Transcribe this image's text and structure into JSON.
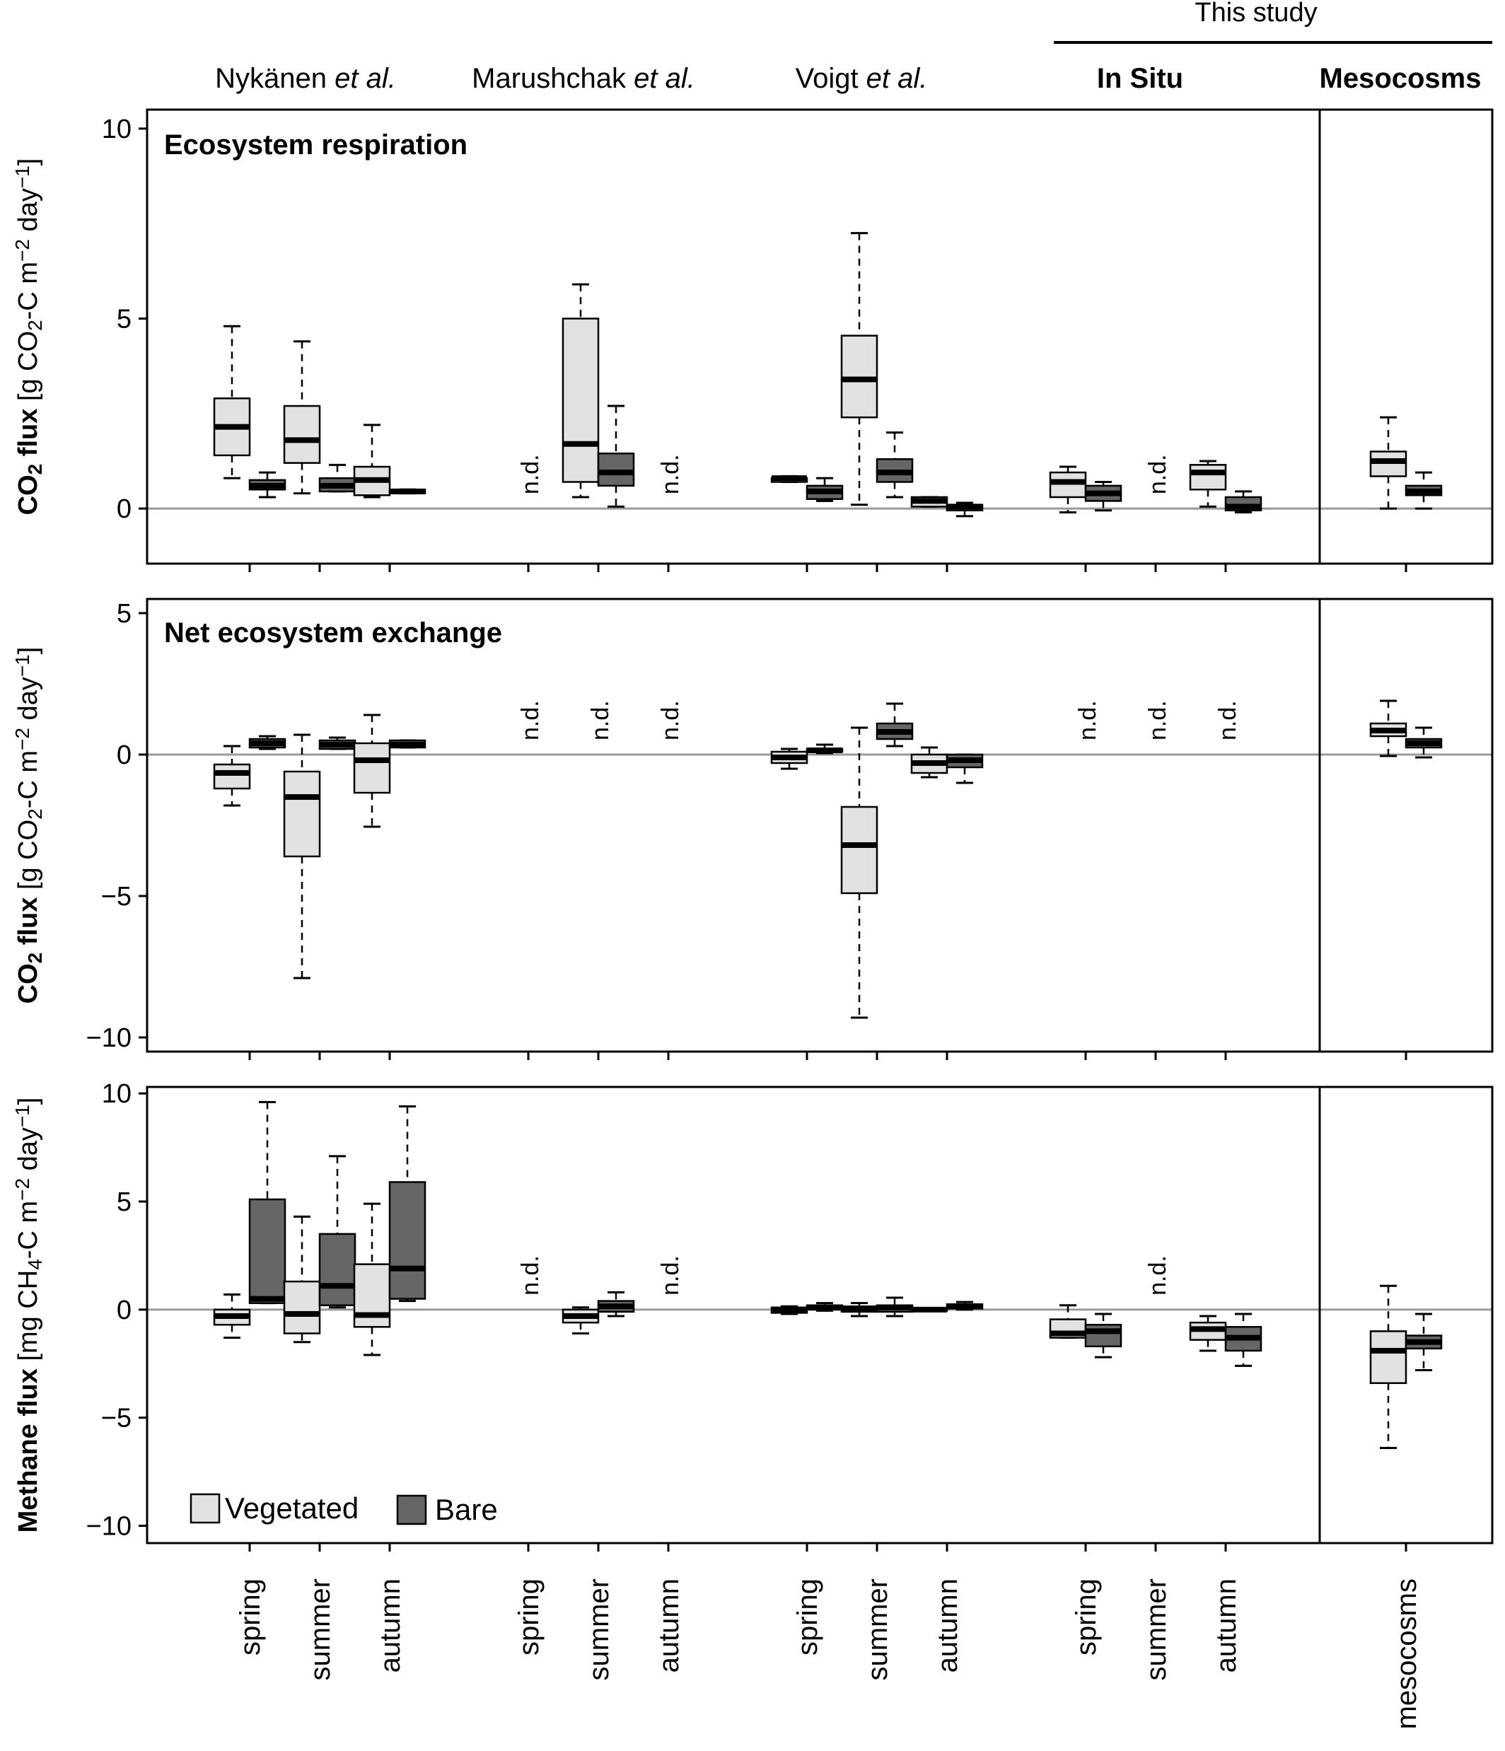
{
  "colors": {
    "vegetated": "#e2e2e2",
    "bare": "#666666",
    "axis": "#000000",
    "zero_line": "#9a9a9a"
  },
  "header": {
    "group_labels": [
      {
        "name": "Nykänen",
        "suffix": " et al."
      },
      {
        "name": "Marushchak",
        "suffix": " et al."
      },
      {
        "name": "Voigt",
        "suffix": " et al."
      },
      {
        "name": "In Situ",
        "suffix": ""
      },
      {
        "name": "Mesocosms",
        "suffix": ""
      }
    ],
    "this_study": "This study"
  },
  "x_tick_labels": [
    "spring",
    "summer",
    "autumn",
    "spring",
    "summer",
    "autumn",
    "spring",
    "summer",
    "autumn",
    "spring",
    "summer",
    "autumn",
    "mesocosms"
  ],
  "legend": {
    "vegetated": "Vegetated",
    "bare": "Bare"
  },
  "nd_label": "n.d.",
  "chart_data": [
    {
      "type": "box",
      "panel_title": "Ecosystem respiration",
      "ylabel": "CO₂ flux [g CO₂-C m⁻² day⁻¹]",
      "ylim": [
        -1.45,
        10.5
      ],
      "yticks": [
        0,
        5,
        10
      ],
      "boxes": [
        {
          "slot": 0,
          "series": "Vegetated",
          "lo": 0.8,
          "q1": 1.4,
          "median": 2.15,
          "q3": 2.9,
          "hi": 4.8
        },
        {
          "slot": 0,
          "series": "Bare",
          "lo": 0.3,
          "q1": 0.5,
          "median": 0.6,
          "q3": 0.75,
          "hi": 0.95
        },
        {
          "slot": 1,
          "series": "Vegetated",
          "lo": 0.4,
          "q1": 1.2,
          "median": 1.8,
          "q3": 2.7,
          "hi": 4.4
        },
        {
          "slot": 1,
          "series": "Bare",
          "lo": 0.45,
          "q1": 0.45,
          "median": 0.6,
          "q3": 0.8,
          "hi": 1.15
        },
        {
          "slot": 2,
          "series": "Vegetated",
          "lo": 0.3,
          "q1": 0.35,
          "median": 0.75,
          "q3": 1.1,
          "hi": 2.2
        },
        {
          "slot": 2,
          "series": "Bare",
          "lo": 0.4,
          "q1": 0.4,
          "median": 0.45,
          "q3": 0.5,
          "hi": 0.5
        },
        {
          "slot": 4,
          "series": "Vegetated",
          "lo": 0.3,
          "q1": 0.7,
          "median": 1.7,
          "q3": 5.0,
          "hi": 5.9
        },
        {
          "slot": 4,
          "series": "Bare",
          "lo": 0.05,
          "q1": 0.6,
          "median": 0.95,
          "q3": 1.45,
          "hi": 2.7
        },
        {
          "slot": 6,
          "series": "Vegetated",
          "lo": 0.7,
          "q1": 0.7,
          "median": 0.8,
          "q3": 0.8,
          "hi": 0.85
        },
        {
          "slot": 6,
          "series": "Bare",
          "lo": 0.2,
          "q1": 0.25,
          "median": 0.45,
          "q3": 0.6,
          "hi": 0.8
        },
        {
          "slot": 7,
          "series": "Vegetated",
          "lo": 0.1,
          "q1": 2.4,
          "median": 3.4,
          "q3": 4.55,
          "hi": 7.25
        },
        {
          "slot": 7,
          "series": "Bare",
          "lo": 0.3,
          "q1": 0.7,
          "median": 0.95,
          "q3": 1.3,
          "hi": 2.0
        },
        {
          "slot": 8,
          "series": "Vegetated",
          "lo": 0.05,
          "q1": 0.05,
          "median": 0.2,
          "q3": 0.3,
          "hi": 0.3
        },
        {
          "slot": 8,
          "series": "Bare",
          "lo": -0.2,
          "q1": -0.05,
          "median": 0.05,
          "q3": 0.1,
          "hi": 0.15
        },
        {
          "slot": 9,
          "series": "Vegetated",
          "lo": -0.1,
          "q1": 0.3,
          "median": 0.7,
          "q3": 0.95,
          "hi": 1.1
        },
        {
          "slot": 9,
          "series": "Bare",
          "lo": -0.05,
          "q1": 0.2,
          "median": 0.4,
          "q3": 0.6,
          "hi": 0.7
        },
        {
          "slot": 11,
          "series": "Vegetated",
          "lo": 0.05,
          "q1": 0.5,
          "median": 0.95,
          "q3": 1.15,
          "hi": 1.25
        },
        {
          "slot": 11,
          "series": "Bare",
          "lo": -0.1,
          "q1": -0.05,
          "median": 0.05,
          "q3": 0.3,
          "hi": 0.45
        },
        {
          "slot": 12,
          "series": "Vegetated",
          "lo": 0.0,
          "q1": 0.85,
          "median": 1.25,
          "q3": 1.5,
          "hi": 2.4
        },
        {
          "slot": 12,
          "series": "Bare",
          "lo": 0.0,
          "q1": 0.35,
          "median": 0.45,
          "q3": 0.6,
          "hi": 0.95
        }
      ],
      "nd_slots": [
        3,
        5,
        10
      ]
    },
    {
      "type": "box",
      "panel_title": "Net ecosystem exchange",
      "ylabel": "CO₂ flux [g CO₂-C m⁻² day⁻¹]",
      "ylim": [
        -10.5,
        5.5
      ],
      "yticks": [
        -10,
        -5,
        0,
        5
      ],
      "boxes": [
        {
          "slot": 0,
          "series": "Vegetated",
          "lo": -1.8,
          "q1": -1.2,
          "median": -0.65,
          "q3": -0.35,
          "hi": 0.3
        },
        {
          "slot": 0,
          "series": "Bare",
          "lo": 0.2,
          "q1": 0.25,
          "median": 0.4,
          "q3": 0.55,
          "hi": 0.65
        },
        {
          "slot": 1,
          "series": "Vegetated",
          "lo": -7.9,
          "q1": -3.6,
          "median": -1.5,
          "q3": -0.6,
          "hi": 0.7
        },
        {
          "slot": 1,
          "series": "Bare",
          "lo": 0.2,
          "q1": 0.2,
          "median": 0.35,
          "q3": 0.5,
          "hi": 0.6
        },
        {
          "slot": 2,
          "series": "Vegetated",
          "lo": -2.55,
          "q1": -1.35,
          "median": -0.2,
          "q3": 0.4,
          "hi": 1.4
        },
        {
          "slot": 2,
          "series": "Bare",
          "lo": 0.25,
          "q1": 0.25,
          "median": 0.35,
          "q3": 0.5,
          "hi": 0.5
        },
        {
          "slot": 6,
          "series": "Vegetated",
          "lo": -0.5,
          "q1": -0.3,
          "median": -0.1,
          "q3": 0.1,
          "hi": 0.2
        },
        {
          "slot": 6,
          "series": "Bare",
          "lo": 0.05,
          "q1": 0.1,
          "median": 0.15,
          "q3": 0.2,
          "hi": 0.35
        },
        {
          "slot": 7,
          "series": "Vegetated",
          "lo": -9.3,
          "q1": -4.9,
          "median": -3.2,
          "q3": -1.85,
          "hi": 0.95
        },
        {
          "slot": 7,
          "series": "Bare",
          "lo": 0.3,
          "q1": 0.55,
          "median": 0.8,
          "q3": 1.1,
          "hi": 1.8
        },
        {
          "slot": 8,
          "series": "Vegetated",
          "lo": -0.8,
          "q1": -0.65,
          "median": -0.3,
          "q3": 0.0,
          "hi": 0.25
        },
        {
          "slot": 8,
          "series": "Bare",
          "lo": -1.0,
          "q1": -0.45,
          "median": -0.2,
          "q3": 0.0,
          "hi": 0.0
        },
        {
          "slot": 12,
          "series": "Vegetated",
          "lo": -0.05,
          "q1": 0.65,
          "median": 0.85,
          "q3": 1.1,
          "hi": 1.9
        },
        {
          "slot": 12,
          "series": "Bare",
          "lo": -0.1,
          "q1": 0.25,
          "median": 0.4,
          "q3": 0.55,
          "hi": 0.95
        }
      ],
      "nd_slots": [
        3,
        4,
        5,
        9,
        10,
        11
      ]
    },
    {
      "type": "box",
      "panel_title": "",
      "ylabel": "Methane flux [mg CH₄-C m⁻² day⁻¹]",
      "ylim": [
        -10.8,
        10.3
      ],
      "yticks": [
        -10,
        -5,
        0,
        5,
        10
      ],
      "boxes": [
        {
          "slot": 0,
          "series": "Vegetated",
          "lo": -1.3,
          "q1": -0.7,
          "median": -0.3,
          "q3": 0.0,
          "hi": 0.7
        },
        {
          "slot": 0,
          "series": "Bare",
          "lo": 0.3,
          "q1": 0.3,
          "median": 0.5,
          "q3": 5.1,
          "hi": 9.6
        },
        {
          "slot": 1,
          "series": "Vegetated",
          "lo": -1.5,
          "q1": -1.1,
          "median": -0.2,
          "q3": 1.3,
          "hi": 4.3
        },
        {
          "slot": 1,
          "series": "Bare",
          "lo": 0.1,
          "q1": 0.2,
          "median": 1.1,
          "q3": 3.5,
          "hi": 7.1
        },
        {
          "slot": 2,
          "series": "Vegetated",
          "lo": -2.1,
          "q1": -0.8,
          "median": -0.25,
          "q3": 2.1,
          "hi": 4.9
        },
        {
          "slot": 2,
          "series": "Bare",
          "lo": 0.4,
          "q1": 0.5,
          "median": 1.9,
          "q3": 5.9,
          "hi": 9.4
        },
        {
          "slot": 4,
          "series": "Vegetated",
          "lo": -1.1,
          "q1": -0.6,
          "median": -0.3,
          "q3": 0.0,
          "hi": 0.1
        },
        {
          "slot": 4,
          "series": "Bare",
          "lo": -0.3,
          "q1": -0.1,
          "median": 0.15,
          "q3": 0.4,
          "hi": 0.8
        },
        {
          "slot": 6,
          "series": "Vegetated",
          "lo": -0.2,
          "q1": -0.15,
          "median": 0.0,
          "q3": 0.1,
          "hi": 0.15
        },
        {
          "slot": 6,
          "series": "Bare",
          "lo": -0.05,
          "q1": 0.0,
          "median": 0.1,
          "q3": 0.2,
          "hi": 0.3
        },
        {
          "slot": 7,
          "series": "Vegetated",
          "lo": -0.3,
          "q1": -0.1,
          "median": 0.05,
          "q3": 0.15,
          "hi": 0.3
        },
        {
          "slot": 7,
          "series": "Bare",
          "lo": -0.3,
          "q1": -0.1,
          "median": 0.1,
          "q3": 0.2,
          "hi": 0.55
        },
        {
          "slot": 8,
          "series": "Vegetated",
          "lo": -0.05,
          "q1": -0.05,
          "median": 0.0,
          "q3": 0.05,
          "hi": 0.05
        },
        {
          "slot": 8,
          "series": "Bare",
          "lo": 0.0,
          "q1": 0.05,
          "median": 0.15,
          "q3": 0.25,
          "hi": 0.35
        },
        {
          "slot": 9,
          "series": "Vegetated",
          "lo": -1.3,
          "q1": -1.3,
          "median": -1.1,
          "q3": -0.45,
          "hi": 0.2
        },
        {
          "slot": 9,
          "series": "Bare",
          "lo": -2.2,
          "q1": -1.7,
          "median": -1.0,
          "q3": -0.7,
          "hi": -0.2
        },
        {
          "slot": 11,
          "series": "Vegetated",
          "lo": -1.9,
          "q1": -1.4,
          "median": -0.9,
          "q3": -0.6,
          "hi": -0.3
        },
        {
          "slot": 11,
          "series": "Bare",
          "lo": -2.6,
          "q1": -1.9,
          "median": -1.3,
          "q3": -0.8,
          "hi": -0.2
        },
        {
          "slot": 12,
          "series": "Vegetated",
          "lo": -6.4,
          "q1": -3.4,
          "median": -1.9,
          "q3": -1.0,
          "hi": 1.1
        },
        {
          "slot": 12,
          "series": "Bare",
          "lo": -2.8,
          "q1": -1.8,
          "median": -1.5,
          "q3": -1.2,
          "hi": -0.2
        }
      ],
      "nd_slots": [
        3,
        5,
        10
      ]
    }
  ]
}
